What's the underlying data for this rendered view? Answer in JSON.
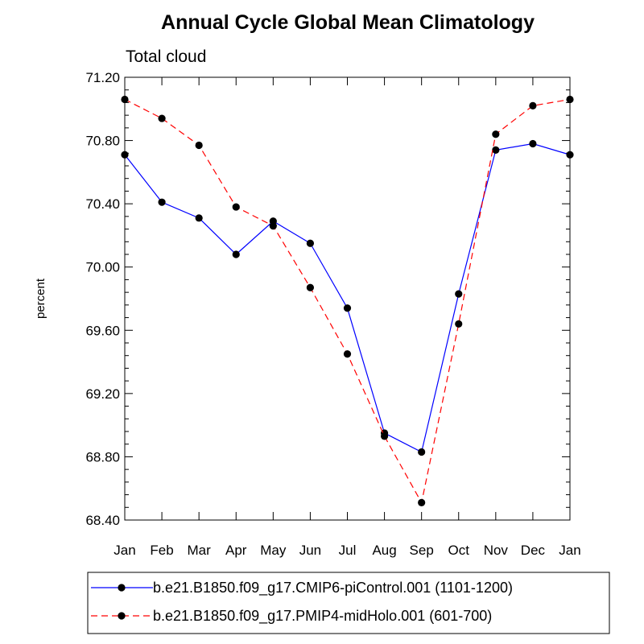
{
  "chart_data": {
    "type": "line",
    "title": "Annual Cycle Global Mean Climatology",
    "subtitle": "Total cloud",
    "xlabel": "",
    "ylabel": "percent",
    "categories": [
      "Jan",
      "Feb",
      "Mar",
      "Apr",
      "May",
      "Jun",
      "Jul",
      "Aug",
      "Sep",
      "Oct",
      "Nov",
      "Dec",
      "Jan"
    ],
    "yticks": [
      "68.40",
      "68.80",
      "69.20",
      "69.60",
      "70.00",
      "70.40",
      "70.80",
      "71.20"
    ],
    "ylim": [
      68.4,
      71.2
    ],
    "grid": false,
    "legend_position": "bottom",
    "series": [
      {
        "name": "b.e21.B1850.f09_g17.CMIP6-piControl.001 (1101-1200)",
        "color": "#0000ff",
        "dash": "solid",
        "values": [
          70.71,
          70.41,
          70.31,
          70.08,
          70.29,
          70.15,
          69.74,
          68.95,
          68.83,
          69.83,
          70.74,
          70.78,
          70.71
        ]
      },
      {
        "name": "b.e21.B1850.f09_g17.PMIP4-midHolo.001 (601-700)",
        "color": "#ff0000",
        "dash": "dashed",
        "values": [
          71.06,
          70.94,
          70.77,
          70.38,
          70.26,
          69.87,
          69.45,
          68.93,
          68.51,
          69.64,
          70.84,
          71.02,
          71.06
        ]
      }
    ]
  }
}
